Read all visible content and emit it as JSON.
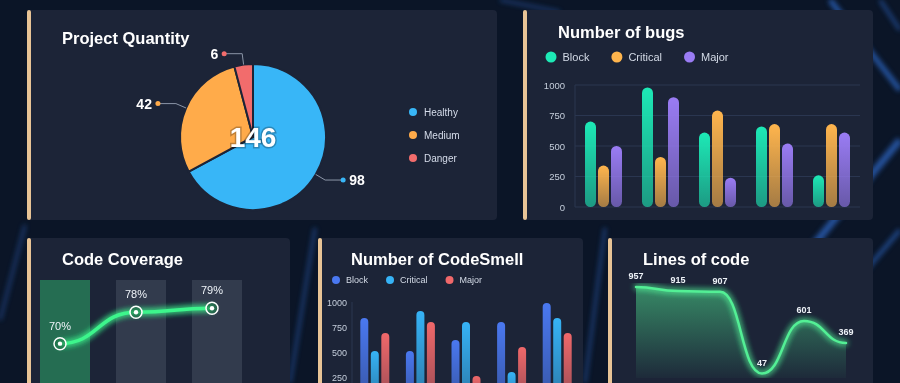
{
  "chart_data": [
    {
      "type": "pie",
      "title": "Project Quantity",
      "categories": [
        "Healthy",
        "Medium",
        "Danger"
      ],
      "values": [
        98,
        42,
        6
      ],
      "colors": [
        "#38b6f7",
        "#ffab4a",
        "#f26c6c"
      ],
      "total": 146,
      "data_labels": true,
      "legend": "right"
    },
    {
      "type": "bar",
      "title": "Number of bugs",
      "categories": [
        null,
        null,
        null,
        null,
        null
      ],
      "series": [
        {
          "name": "Block",
          "color": "#1de9b6",
          "values": [
            700,
            980,
            610,
            660,
            260
          ]
        },
        {
          "name": "Critical",
          "color": "#ffb54d",
          "values": [
            340,
            410,
            790,
            680,
            680
          ]
        },
        {
          "name": "Major",
          "color": "#9a7cf4",
          "values": [
            500,
            900,
            240,
            520,
            610
          ]
        }
      ],
      "ylim": [
        0,
        1000
      ],
      "yticks": [
        0,
        250,
        500,
        750,
        1000
      ],
      "grid": true,
      "legend": "top-left",
      "tick_labels": "y"
    },
    {
      "type": "line",
      "title": "Code Coverage",
      "categories": [
        null,
        null,
        null
      ],
      "values": [
        70,
        78,
        79
      ],
      "value_labels": [
        "70%",
        "78%",
        "79%"
      ],
      "ylim": [
        60,
        90
      ],
      "color": "#3cf58c",
      "marker": "circle",
      "data_labels": true,
      "tick_labels": false
    },
    {
      "type": "bar",
      "title": "Number of CodeSmell",
      "categories": [
        null,
        null,
        null,
        null,
        null
      ],
      "series": [
        {
          "name": "Block",
          "color": "#4a78f0",
          "values": [
            840,
            510,
            620,
            800,
            990
          ]
        },
        {
          "name": "Critical",
          "color": "#36b3f6",
          "values": [
            510,
            910,
            800,
            300,
            840
          ]
        },
        {
          "name": "Major",
          "color": "#f0686a",
          "values": [
            690,
            800,
            260,
            550,
            690
          ]
        }
      ],
      "ylim": [
        0,
        1000
      ],
      "yticks": [
        250,
        500,
        750,
        1000
      ],
      "legend": "top-left",
      "tick_labels": "y"
    },
    {
      "type": "area",
      "title": "Lines of code",
      "categories": [
        null,
        null,
        null,
        null,
        null,
        null
      ],
      "values": [
        957,
        915,
        907,
        47,
        601,
        369
      ],
      "ylim": [
        0,
        1000
      ],
      "color": "#52ef95",
      "data_labels": true,
      "tick_labels": false
    }
  ]
}
